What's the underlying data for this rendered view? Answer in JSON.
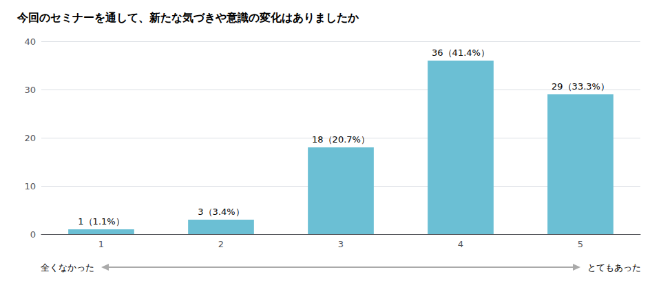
{
  "chart_data": {
    "type": "bar",
    "title": "今回のセミナーを通して、新たな気づきや意識の変化はありましたか",
    "categories": [
      1,
      2,
      3,
      4,
      5
    ],
    "values": [
      1,
      3,
      18,
      36,
      29
    ],
    "value_labels": [
      "1（1.1%）",
      "3（3.4%）",
      "18（20.7%）",
      "36（41.4%）",
      "29（33.3%）"
    ],
    "color": "#6bbfd4",
    "ylim": [
      0,
      40
    ],
    "yticks": [
      0,
      10,
      20,
      30,
      40
    ],
    "grid": true,
    "data_labels": true,
    "annotations": [
      "全くなかった",
      "とてもあった"
    ]
  }
}
